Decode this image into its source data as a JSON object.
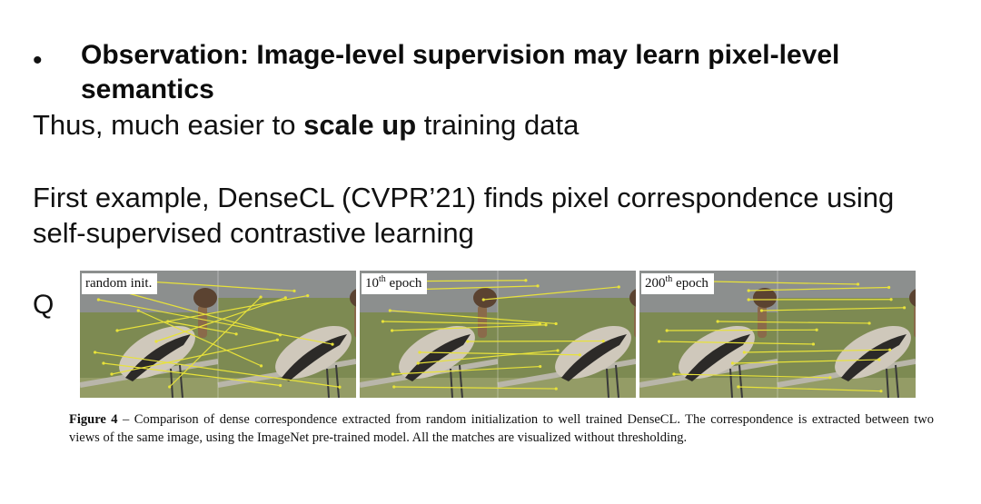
{
  "slide": {
    "bullet_symbol": "•",
    "bullet_text": "Observation: Image-level supervision may learn pixel-level semantics",
    "line1_prefix": "Thus, much easier to ",
    "line1_bold": "scale up",
    "line1_suffix": " training data",
    "line2": "First example, DenseCL (CVPR’21) finds pixel correspondence using",
    "line3": "self-supervised contrastive learning",
    "q_label": "Q"
  },
  "figure": {
    "panels": [
      {
        "label_main": "random init.",
        "label_sup": ""
      },
      {
        "label_main": "10",
        "label_sup": "th",
        "label_rest": " epoch"
      },
      {
        "label_main": "200",
        "label_sup": "th",
        "label_rest": " epoch"
      }
    ],
    "caption_label": "Figure 4",
    "caption_text": " – Comparison of dense correspondence extracted from random initialization to well trained DenseCL. The correspondence is extracted between two views of the same image, using the ImageNet pre-trained model.  All the matches are visualized without thresholding."
  },
  "colors": {
    "match_line": "#e8e23a",
    "grass": "#7d8a52",
    "road": "#8c8f8e",
    "duck_body": "#c9c2b6"
  }
}
